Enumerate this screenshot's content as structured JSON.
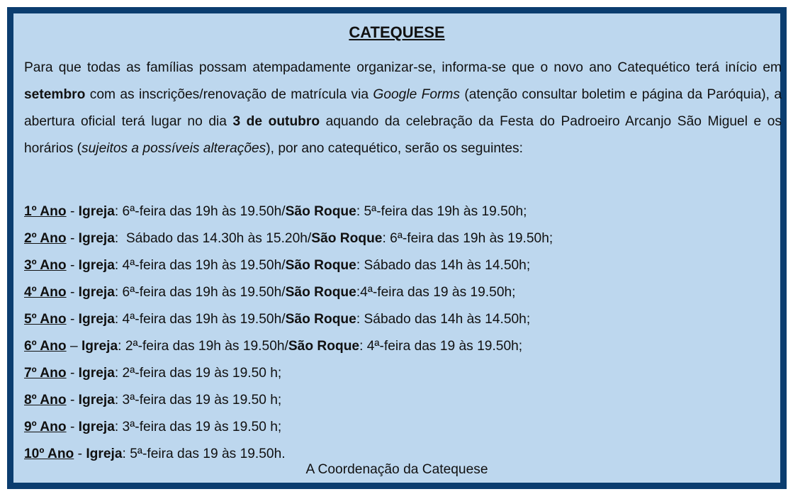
{
  "title": "CATEQUESE",
  "intro": {
    "p1": "Para que todas as famílias possam atempadamente organizar-se, informa-se que o novo ano Catequético terá início em ",
    "b1": "setembro",
    "p2": " com as inscrições/renovação de matrícula via ",
    "i1": "Google Forms",
    "p3": " (atenção consultar boletim e página da Paróquia), a abertura oficial terá lugar no dia ",
    "b2": "3 de outubro",
    "p4": " aquando da celebração da Festa do Padroeiro Arcanjo São Miguel e os horários (",
    "i2": "sujeitos a possíveis alterações",
    "p5": "), por ano catequético, serão os seguintes:"
  },
  "schedule": [
    {
      "year": "1º Ano",
      "sep": " - ",
      "church": "Igreja",
      "t1": ": 6ª-feira das 19h às 19.50h/",
      "sr": "São Roque",
      "t2": ": 5ª-feira das 19h às 19.50h;"
    },
    {
      "year": "2º Ano",
      "sep": " - ",
      "church": "Igreja",
      "t1": ":  Sábado das 14.30h às 15.20h/",
      "sr": "São Roque",
      "t2": ": 6ª-feira das 19h às 19.50h;"
    },
    {
      "year": "3º Ano",
      "sep": " - ",
      "church": "Igreja",
      "t1": ": 4ª-feira das 19h às 19.50h/",
      "sr": "São Roque",
      "t2": ": Sábado das 14h às 14.50h;"
    },
    {
      "year": "4º Ano",
      "sep": " - ",
      "church": "Igreja",
      "t1": ": 6ª-feira das 19h às 19.50h/",
      "sr": "São Roque",
      "t2": ":4ª-feira das 19 às 19.50h;"
    },
    {
      "year": "5º Ano",
      "sep": " - ",
      "church": "Igreja",
      "t1": ": 4ª-feira das 19h às 19.50h/",
      "sr": "São Roque",
      "t2": ": Sábado das 14h às 14.50h;"
    },
    {
      "year": "6º Ano",
      "sep": " – ",
      "church": "Igreja",
      "t1": ": 2ª-feira das 19h às 19.50h/",
      "sr": "São Roque",
      "t2": ": 4ª-feira das 19 às 19.50h;"
    },
    {
      "year": "7º Ano",
      "sep": " - ",
      "church": "Igreja",
      "t1": ": 2ª-feira das 19 às 19.50 h;",
      "sr": "",
      "t2": ""
    },
    {
      "year": "8º Ano",
      "sep": " - ",
      "church": "Igreja",
      "t1": ": 3ª-feira das 19 às 19.50 h;",
      "sr": "",
      "t2": ""
    },
    {
      "year": "9º Ano",
      "sep": " - ",
      "church": "Igreja",
      "t1": ": 3ª-feira das 19 às 19.50 h;",
      "sr": "",
      "t2": ""
    },
    {
      "year": "10º Ano",
      "sep": " - ",
      "church": "Igreja",
      "t1": ": 5ª-feira das 19 às 19.50h.",
      "sr": "",
      "t2": ""
    }
  ],
  "signature": "A Coordenação da Catequese",
  "colors": {
    "border": "#0b3d6f",
    "background": "#bdd7ee"
  }
}
